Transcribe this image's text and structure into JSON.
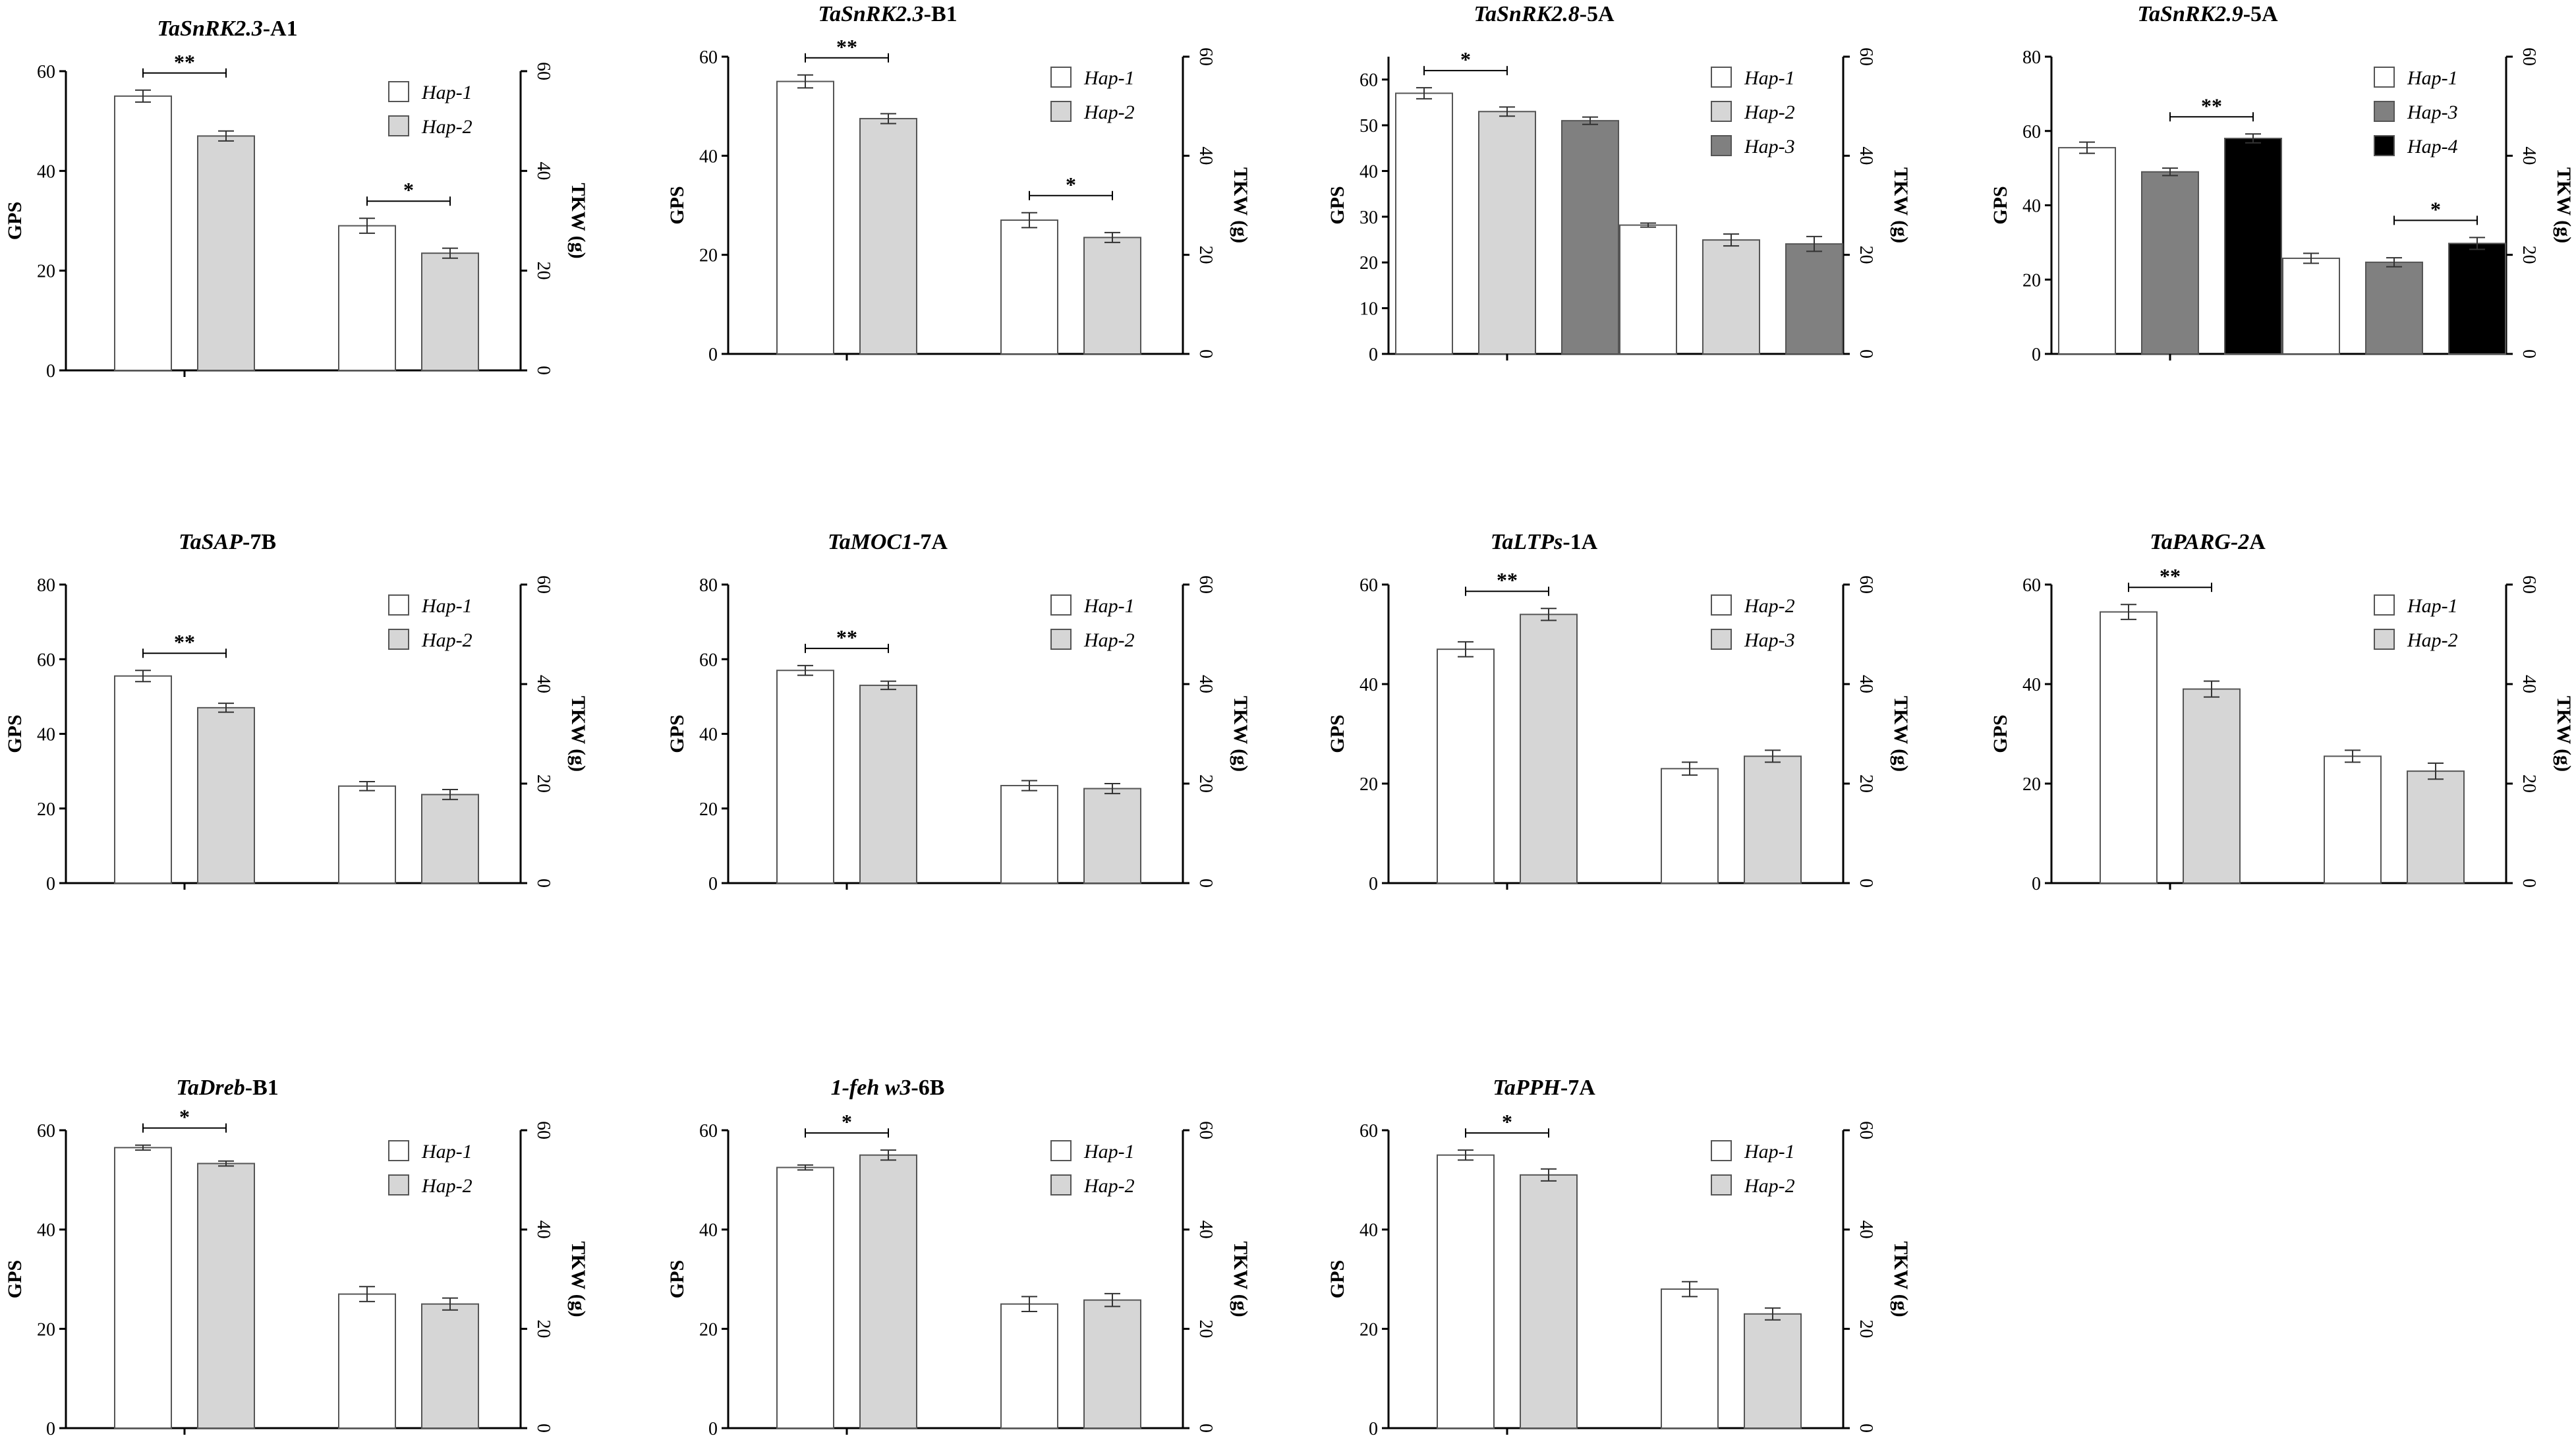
{
  "figure": {
    "panel_count": 11
  },
  "colors": {
    "Hap-1": "#ffffff",
    "Hap-2": "#d6d6d6",
    "Hap-3": "#808080",
    "Hap-4": "#000000",
    "axis": "#000000",
    "bar_stroke": "#555555"
  },
  "chart_data": [
    {
      "type": "bar",
      "title_italic": "TaSnRK2.3",
      "title_rest": "-A1",
      "ylabel": "GPS",
      "y2label": "TKW (g)",
      "ylim": [
        0,
        60
      ],
      "yticks": [
        0,
        20,
        40,
        60
      ],
      "y2lim": [
        0,
        60
      ],
      "y2ticks": [
        0,
        20,
        40,
        60
      ],
      "legend": [
        "Hap-1",
        "Hap-2"
      ],
      "groups": [
        {
          "axis": "GPS",
          "bars": [
            {
              "hap": "Hap-1",
              "value": 55,
              "err": 1.2
            },
            {
              "hap": "Hap-2",
              "value": 47,
              "err": 1.0
            }
          ],
          "sig": {
            "label": "**",
            "from": 0,
            "to": 1
          }
        },
        {
          "axis": "TKW",
          "bars": [
            {
              "hap": "Hap-1",
              "value": 29,
              "err": 1.5
            },
            {
              "hap": "Hap-2",
              "value": 23.5,
              "err": 1.0
            }
          ],
          "sig": {
            "label": "*",
            "from": 0,
            "to": 1
          }
        }
      ]
    },
    {
      "type": "bar",
      "title_italic": "TaSnRK2.3",
      "title_rest": "-B1",
      "ylabel": "GPS",
      "y2label": "TKW (g)",
      "ylim": [
        0,
        60
      ],
      "yticks": [
        0,
        20,
        40,
        60
      ],
      "y2lim": [
        0,
        60
      ],
      "y2ticks": [
        0,
        20,
        40,
        60
      ],
      "legend": [
        "Hap-1",
        "Hap-2"
      ],
      "groups": [
        {
          "axis": "GPS",
          "bars": [
            {
              "hap": "Hap-1",
              "value": 55,
              "err": 1.3
            },
            {
              "hap": "Hap-2",
              "value": 47.5,
              "err": 1.0
            }
          ],
          "sig": {
            "label": "**",
            "from": 0,
            "to": 1
          }
        },
        {
          "axis": "TKW",
          "bars": [
            {
              "hap": "Hap-1",
              "value": 27,
              "err": 1.5
            },
            {
              "hap": "Hap-2",
              "value": 23.5,
              "err": 1.0
            }
          ],
          "sig": {
            "label": "*",
            "from": 0,
            "to": 1
          }
        }
      ]
    },
    {
      "type": "bar",
      "title_italic": "TaSnRK2.8",
      "title_rest": "-5A",
      "ylabel": "GPS",
      "y2label": "TKW (g)",
      "ylim": [
        0,
        65
      ],
      "yticks": [
        0,
        10,
        20,
        30,
        40,
        50,
        60
      ],
      "y2lim": [
        0,
        60
      ],
      "y2ticks": [
        0,
        20,
        40,
        60
      ],
      "legend": [
        "Hap-1",
        "Hap-2",
        "Hap-3"
      ],
      "groups": [
        {
          "axis": "GPS",
          "bars": [
            {
              "hap": "Hap-1",
              "value": 57,
              "err": 1.2
            },
            {
              "hap": "Hap-2",
              "value": 53,
              "err": 1.0
            },
            {
              "hap": "Hap-3",
              "value": 51,
              "err": 0.8
            }
          ],
          "sig": {
            "label": "*",
            "from": 0,
            "to": 1
          }
        },
        {
          "axis": "TKW",
          "bars": [
            {
              "hap": "Hap-1",
              "value": 26,
              "err": 0.4
            },
            {
              "hap": "Hap-2",
              "value": 23,
              "err": 1.2
            },
            {
              "hap": "Hap-3",
              "value": 22.2,
              "err": 1.5
            }
          ],
          "sig": null
        }
      ]
    },
    {
      "type": "bar",
      "title_italic": "TaSnRK2.9",
      "title_rest": "-5A",
      "ylabel": "GPS",
      "y2label": "TKW (g)",
      "ylim": [
        0,
        80
      ],
      "yticks": [
        0,
        20,
        40,
        60,
        80
      ],
      "y2lim": [
        0,
        60
      ],
      "y2ticks": [
        0,
        20,
        40,
        60
      ],
      "legend": [
        "Hap-1",
        "Hap-3",
        "Hap-4"
      ],
      "groups": [
        {
          "axis": "GPS",
          "bars": [
            {
              "hap": "Hap-1",
              "value": 55.5,
              "err": 1.5
            },
            {
              "hap": "Hap-3",
              "value": 49,
              "err": 1.0
            },
            {
              "hap": "Hap-4",
              "value": 58,
              "err": 1.2
            }
          ],
          "sig": {
            "label": "**",
            "from": 1,
            "to": 2
          }
        },
        {
          "axis": "TKW",
          "bars": [
            {
              "hap": "Hap-1",
              "value": 19.3,
              "err": 1.0
            },
            {
              "hap": "Hap-3",
              "value": 18.5,
              "err": 0.9
            },
            {
              "hap": "Hap-4",
              "value": 22.3,
              "err": 1.2
            }
          ],
          "sig": {
            "label": "*",
            "from": 1,
            "to": 2
          }
        }
      ]
    },
    {
      "type": "bar",
      "title_italic": "TaSAP",
      "title_rest": "-7B",
      "ylabel": "GPS",
      "y2label": "TKW (g)",
      "ylim": [
        0,
        80
      ],
      "yticks": [
        0,
        20,
        40,
        60,
        80
      ],
      "y2lim": [
        0,
        60
      ],
      "y2ticks": [
        0,
        20,
        40,
        60
      ],
      "legend": [
        "Hap-1",
        "Hap-2"
      ],
      "groups": [
        {
          "axis": "GPS",
          "bars": [
            {
              "hap": "Hap-1",
              "value": 55.5,
              "err": 1.5
            },
            {
              "hap": "Hap-2",
              "value": 47,
              "err": 1.2
            }
          ],
          "sig": {
            "label": "**",
            "from": 0,
            "to": 1
          }
        },
        {
          "axis": "TKW",
          "bars": [
            {
              "hap": "Hap-1",
              "value": 19.5,
              "err": 0.9
            },
            {
              "hap": "Hap-2",
              "value": 17.8,
              "err": 1.0
            }
          ],
          "sig": null
        }
      ]
    },
    {
      "type": "bar",
      "title_italic": "TaMOC1",
      "title_rest": "-7A",
      "ylabel": "GPS",
      "y2label": "TKW (g)",
      "ylim": [
        0,
        80
      ],
      "yticks": [
        0,
        20,
        40,
        60,
        80
      ],
      "y2lim": [
        0,
        60
      ],
      "y2ticks": [
        0,
        20,
        40,
        60
      ],
      "legend": [
        "Hap-1",
        "Hap-2"
      ],
      "groups": [
        {
          "axis": "GPS",
          "bars": [
            {
              "hap": "Hap-1",
              "value": 57,
              "err": 1.3
            },
            {
              "hap": "Hap-2",
              "value": 53,
              "err": 1.1
            }
          ],
          "sig": {
            "label": "**",
            "from": 0,
            "to": 1
          }
        },
        {
          "axis": "TKW",
          "bars": [
            {
              "hap": "Hap-1",
              "value": 19.6,
              "err": 1.0
            },
            {
              "hap": "Hap-2",
              "value": 19,
              "err": 1.0
            }
          ],
          "sig": null
        }
      ]
    },
    {
      "type": "bar",
      "title_italic": "TaLTPs",
      "title_rest": "-1A",
      "ylabel": "GPS",
      "y2label": "TKW (g)",
      "ylim": [
        0,
        60
      ],
      "yticks": [
        0,
        20,
        40,
        60
      ],
      "y2lim": [
        0,
        60
      ],
      "y2ticks": [
        0,
        20,
        40,
        60
      ],
      "legend": [
        "Hap-2",
        "Hap-3"
      ],
      "bar_colors": [
        "Hap-1",
        "Hap-2"
      ],
      "groups": [
        {
          "axis": "GPS",
          "bars": [
            {
              "hap": "Hap-2",
              "value": 47,
              "err": 1.5
            },
            {
              "hap": "Hap-3",
              "value": 54,
              "err": 1.2
            }
          ],
          "sig": {
            "label": "**",
            "from": 0,
            "to": 1
          }
        },
        {
          "axis": "TKW",
          "bars": [
            {
              "hap": "Hap-2",
              "value": 23,
              "err": 1.3
            },
            {
              "hap": "Hap-3",
              "value": 25.5,
              "err": 1.2
            }
          ],
          "sig": null
        }
      ]
    },
    {
      "type": "bar",
      "title_italic": "TaPARG-2",
      "title_rest": "A",
      "ylabel": "GPS",
      "y2label": "TKW (g)",
      "ylim": [
        0,
        60
      ],
      "yticks": [
        0,
        20,
        40,
        60
      ],
      "y2lim": [
        0,
        60
      ],
      "y2ticks": [
        0,
        20,
        40,
        60
      ],
      "legend": [
        "Hap-1",
        "Hap-2"
      ],
      "groups": [
        {
          "axis": "GPS",
          "bars": [
            {
              "hap": "Hap-1",
              "value": 54.5,
              "err": 1.5
            },
            {
              "hap": "Hap-2",
              "value": 39,
              "err": 1.6
            }
          ],
          "sig": {
            "label": "**",
            "from": 0,
            "to": 1
          }
        },
        {
          "axis": "TKW",
          "bars": [
            {
              "hap": "Hap-1",
              "value": 25.5,
              "err": 1.2
            },
            {
              "hap": "Hap-2",
              "value": 22.5,
              "err": 1.6
            }
          ],
          "sig": null
        }
      ]
    },
    {
      "type": "bar",
      "title_italic": "TaDreb",
      "title_rest": "-B1",
      "ylabel": "GPS",
      "y2label": "TKW (g)",
      "ylim": [
        0,
        60
      ],
      "yticks": [
        0,
        20,
        40,
        60
      ],
      "y2lim": [
        0,
        60
      ],
      "y2ticks": [
        0,
        20,
        40,
        60
      ],
      "legend": [
        "Hap-1",
        "Hap-2"
      ],
      "groups": [
        {
          "axis": "GPS",
          "bars": [
            {
              "hap": "Hap-1",
              "value": 56.5,
              "err": 0.5
            },
            {
              "hap": "Hap-2",
              "value": 53.3,
              "err": 0.5
            }
          ],
          "sig": {
            "label": "*",
            "from": 0,
            "to": 1
          }
        },
        {
          "axis": "TKW",
          "bars": [
            {
              "hap": "Hap-1",
              "value": 27,
              "err": 1.5
            },
            {
              "hap": "Hap-2",
              "value": 25,
              "err": 1.2
            }
          ],
          "sig": null
        }
      ]
    },
    {
      "type": "bar",
      "title_italic": "1-feh w3",
      "title_rest": "-6B",
      "ylabel": "GPS",
      "y2label": "TKW (g)",
      "ylim": [
        0,
        60
      ],
      "yticks": [
        0,
        20,
        40,
        60
      ],
      "y2lim": [
        0,
        60
      ],
      "y2ticks": [
        0,
        20,
        40,
        60
      ],
      "legend": [
        "Hap-1",
        "Hap-2"
      ],
      "groups": [
        {
          "axis": "GPS",
          "bars": [
            {
              "hap": "Hap-1",
              "value": 52.5,
              "err": 0.5
            },
            {
              "hap": "Hap-2",
              "value": 55,
              "err": 1.0
            }
          ],
          "sig": {
            "label": "*",
            "from": 0,
            "to": 1
          }
        },
        {
          "axis": "TKW",
          "bars": [
            {
              "hap": "Hap-1",
              "value": 25,
              "err": 1.5
            },
            {
              "hap": "Hap-2",
              "value": 25.8,
              "err": 1.3
            }
          ],
          "sig": null
        }
      ]
    },
    {
      "type": "bar",
      "title_italic": "TaPPH",
      "title_rest": "-7A",
      "ylabel": "GPS",
      "y2label": "TKW (g)",
      "ylim": [
        0,
        60
      ],
      "yticks": [
        0,
        20,
        40,
        60
      ],
      "y2lim": [
        0,
        60
      ],
      "y2ticks": [
        0,
        20,
        40,
        60
      ],
      "legend": [
        "Hap-1",
        "Hap-2"
      ],
      "groups": [
        {
          "axis": "GPS",
          "bars": [
            {
              "hap": "Hap-1",
              "value": 55,
              "err": 1.0
            },
            {
              "hap": "Hap-2",
              "value": 51,
              "err": 1.2
            }
          ],
          "sig": {
            "label": "*",
            "from": 0,
            "to": 1
          }
        },
        {
          "axis": "TKW",
          "bars": [
            {
              "hap": "Hap-1",
              "value": 28,
              "err": 1.5
            },
            {
              "hap": "Hap-2",
              "value": 23,
              "err": 1.2
            }
          ],
          "sig": null
        }
      ]
    }
  ]
}
